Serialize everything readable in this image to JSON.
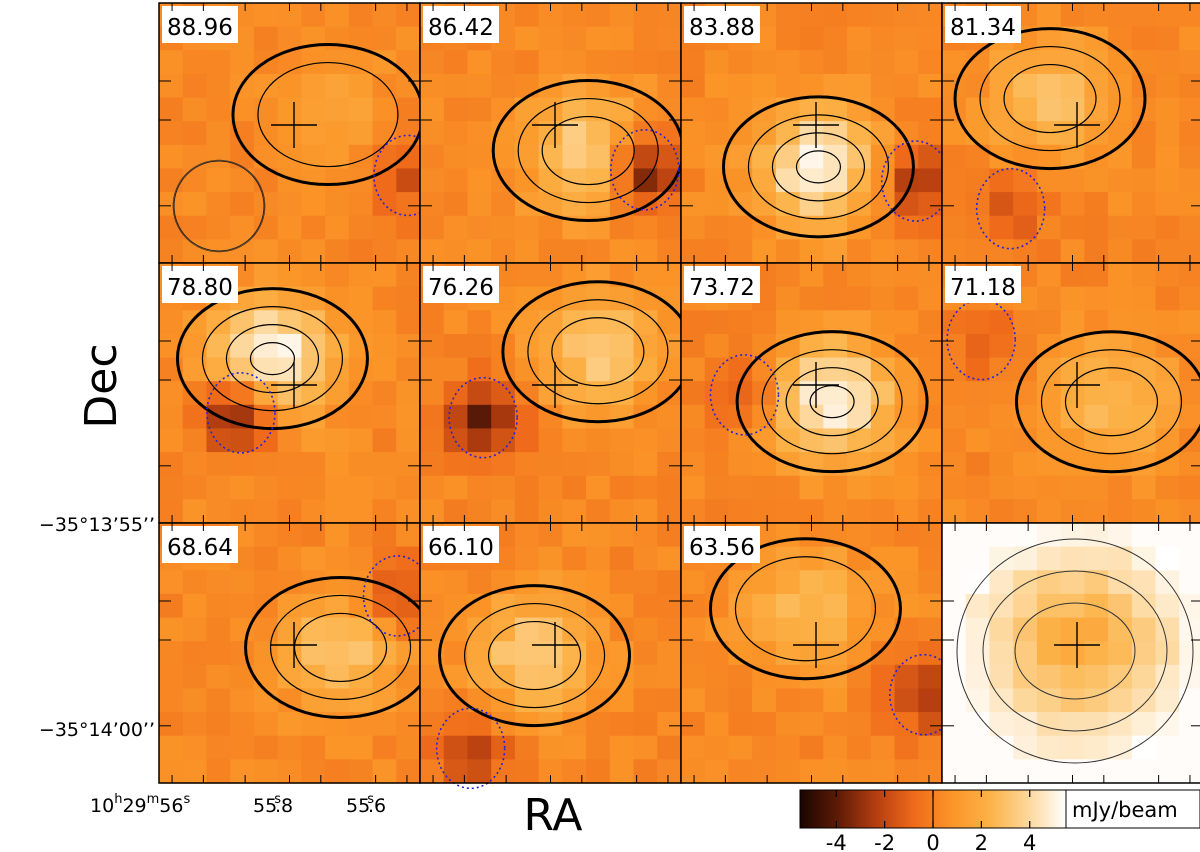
{
  "chart_data": {
    "type": "heatmap",
    "description_units": "velocity channel maps",
    "xlabel": "RA",
    "ylabel": "Dec",
    "x_ticks": [
      {
        "h": "10",
        "m": "29",
        "s": "56",
        "label_main": "10",
        "sup_h": "h",
        "mid": "29",
        "sup_m": "m",
        "tail": "56",
        "sup_s": "s"
      },
      {
        "label_main": "55",
        "sup_s": "s",
        "tail": ".8"
      },
      {
        "label_main": "55",
        "sup_s": "s",
        "tail": ".6"
      }
    ],
    "y_ticks": [
      "−35°13’55’’",
      "−35°14’00’’"
    ],
    "colorbar": {
      "label": "mJy/beam",
      "ticks": [
        "-4",
        "-2",
        "0",
        "2",
        "4"
      ],
      "tick_values": [
        -4,
        -2,
        0,
        2,
        4
      ],
      "range": [
        -5.5,
        5.5
      ],
      "colormap": [
        "#1a0500",
        "#5e1b06",
        "#b53e10",
        "#ef6a1a",
        "#fb9528",
        "#fcb247",
        "#fdd79a",
        "#ffffff"
      ]
    },
    "panels": [
      {
        "label": "88.96",
        "peak": 1.2,
        "trough": -2.0
      },
      {
        "label": "86.42",
        "peak": 3.5,
        "trough": -4.5
      },
      {
        "label": "83.88",
        "peak": 4.8,
        "trough": -3.2
      },
      {
        "label": "81.34",
        "peak": 2.6,
        "trough": -1.6
      },
      {
        "label": "78.80",
        "peak": 5.2,
        "trough": -4.6
      },
      {
        "label": "76.26",
        "peak": 3.0,
        "trough": -4.0
      },
      {
        "label": "73.72",
        "peak": 4.8,
        "trough": -1.6
      },
      {
        "label": "71.18",
        "peak": 2.6,
        "trough": -1.2
      },
      {
        "label": "68.64",
        "peak": 2.8,
        "trough": -2.2
      },
      {
        "label": "66.10",
        "peak": 3.2,
        "trough": -2.4
      },
      {
        "label": "63.56",
        "peak": 2.4,
        "trough": -3.0
      },
      {
        "label": "",
        "peak": 5.0,
        "trough": 0.0,
        "integrated": true
      }
    ]
  }
}
